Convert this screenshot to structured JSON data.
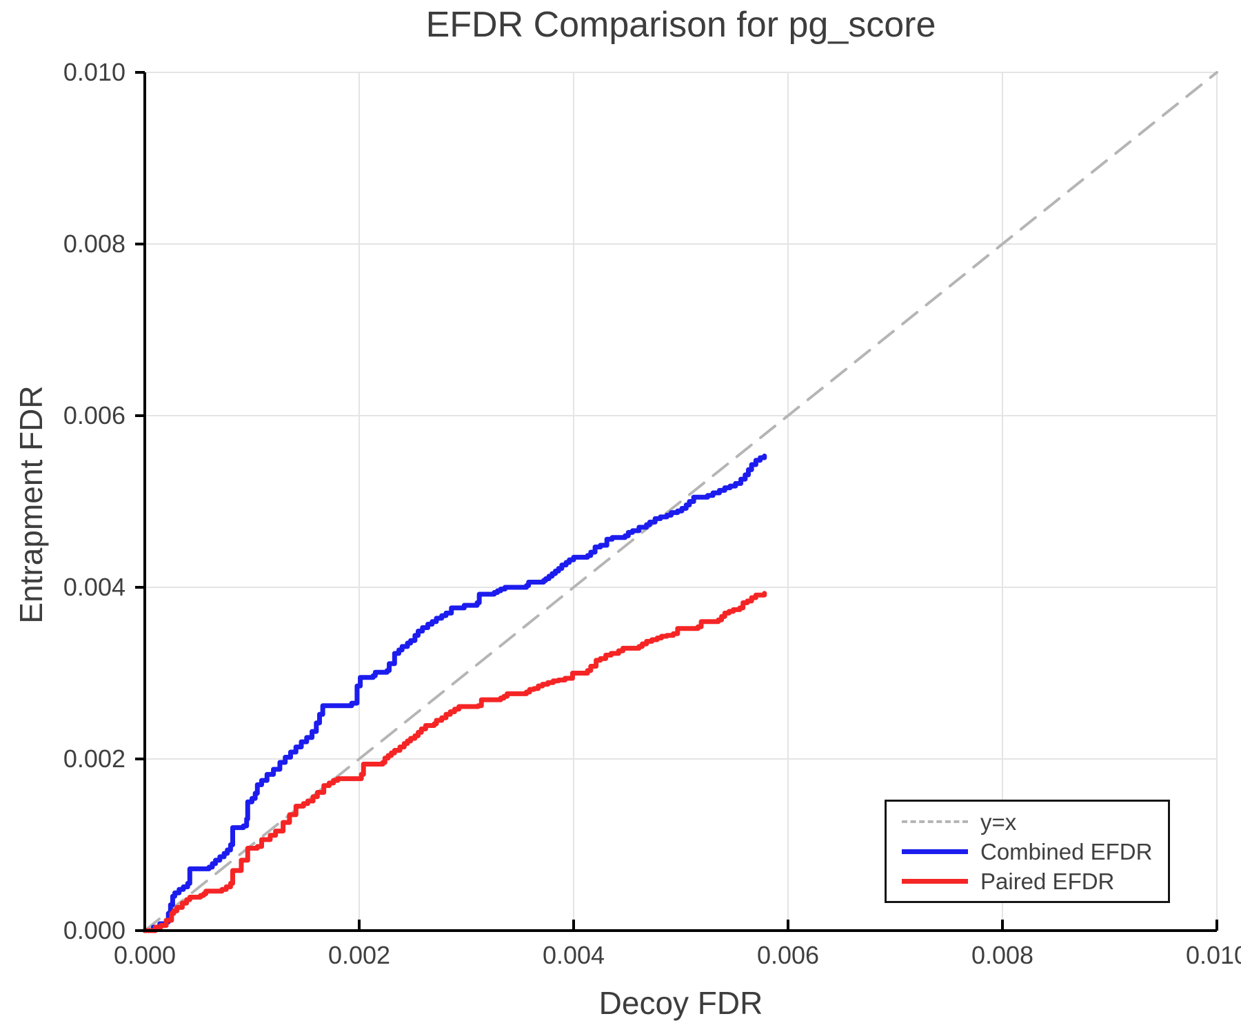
{
  "header": {
    "title": "EFDR Comparison for pg_score"
  },
  "axes": {
    "x_label": "Decoy FDR",
    "y_label": "Entrapment FDR"
  },
  "colors": {
    "combined": "#1c1cee",
    "paired": "#f52525",
    "identity": "#b5b5b5",
    "grid": "#e4e4e4",
    "spine": "#000000",
    "text": "#3f3f3f"
  },
  "chart_data": {
    "type": "line",
    "title": "EFDR Comparison for pg_score",
    "xlabel": "Decoy FDR",
    "ylabel": "Entrapment FDR",
    "xlim": [
      0.0,
      0.01
    ],
    "ylim": [
      0.0,
      0.01
    ],
    "grid": true,
    "x_ticks": {
      "values": [
        0.0,
        0.002,
        0.004,
        0.006,
        0.008,
        0.01
      ],
      "labels": [
        "0.000",
        "0.002",
        "0.004",
        "0.006",
        "0.008",
        "0.010"
      ]
    },
    "y_ticks": {
      "values": [
        0.0,
        0.002,
        0.004,
        0.006,
        0.008,
        0.01
      ],
      "labels": [
        "0.000",
        "0.002",
        "0.004",
        "0.006",
        "0.008",
        "0.010"
      ]
    },
    "legend": {
      "position": "lower right",
      "entries": [
        {
          "label": "y=x",
          "color": "#b5b5b5",
          "dashed": true
        },
        {
          "label": "Combined EFDR",
          "color": "#1c1cee",
          "dashed": false
        },
        {
          "label": "Paired EFDR",
          "color": "#f52525",
          "dashed": false
        }
      ]
    },
    "series": [
      {
        "name": "y=x",
        "color": "#b5b5b5",
        "dashed": true,
        "step": false,
        "width": 4,
        "points": [
          [
            0.0,
            0.0
          ],
          [
            0.01,
            0.01
          ]
        ]
      },
      {
        "name": "Combined EFDR",
        "color": "#1c1cee",
        "dashed": false,
        "step": true,
        "width": 7,
        "points": [
          [
            0.0,
            0.0
          ],
          [
            8e-05,
            4e-05
          ],
          [
            0.00014,
            8e-05
          ],
          [
            0.0002,
            0.0001
          ],
          [
            0.00022,
            0.0002
          ],
          [
            0.00024,
            0.0003
          ],
          [
            0.00026,
            0.0004
          ],
          [
            0.00028,
            0.00044
          ],
          [
            0.00032,
            0.00048
          ],
          [
            0.00036,
            0.00051
          ],
          [
            0.0004,
            0.00055
          ],
          [
            0.00042,
            0.00072
          ],
          [
            0.0006,
            0.00074
          ],
          [
            0.00063,
            0.00078
          ],
          [
            0.00066,
            0.00082
          ],
          [
            0.0007,
            0.00086
          ],
          [
            0.00074,
            0.0009
          ],
          [
            0.00077,
            0.00094
          ],
          [
            0.0008,
            0.001
          ],
          [
            0.00082,
            0.0012
          ],
          [
            0.00092,
            0.00122
          ],
          [
            0.00095,
            0.0013
          ],
          [
            0.00096,
            0.0015
          ],
          [
            0.001,
            0.00154
          ],
          [
            0.00103,
            0.0016
          ],
          [
            0.00105,
            0.0017
          ],
          [
            0.00109,
            0.00175
          ],
          [
            0.00114,
            0.00182
          ],
          [
            0.0012,
            0.00188
          ],
          [
            0.00126,
            0.00196
          ],
          [
            0.00131,
            0.00202
          ],
          [
            0.00136,
            0.00208
          ],
          [
            0.00141,
            0.00214
          ],
          [
            0.00146,
            0.0022
          ],
          [
            0.00151,
            0.00225
          ],
          [
            0.00156,
            0.00232
          ],
          [
            0.0016,
            0.00242
          ],
          [
            0.00163,
            0.00252
          ],
          [
            0.00166,
            0.00262
          ],
          [
            0.00193,
            0.00265
          ],
          [
            0.00198,
            0.00285
          ],
          [
            0.00201,
            0.00295
          ],
          [
            0.00213,
            0.00297
          ],
          [
            0.00215,
            0.00301
          ],
          [
            0.00226,
            0.00303
          ],
          [
            0.00228,
            0.00311
          ],
          [
            0.00233,
            0.00323
          ],
          [
            0.00237,
            0.00327
          ],
          [
            0.0024,
            0.00331
          ],
          [
            0.00245,
            0.00335
          ],
          [
            0.00248,
            0.00338
          ],
          [
            0.00252,
            0.00344
          ],
          [
            0.00255,
            0.00349
          ],
          [
            0.00259,
            0.00353
          ],
          [
            0.00264,
            0.00357
          ],
          [
            0.00268,
            0.0036
          ],
          [
            0.00272,
            0.00364
          ],
          [
            0.00277,
            0.00367
          ],
          [
            0.00281,
            0.0037
          ],
          [
            0.00286,
            0.00376
          ],
          [
            0.00298,
            0.00379
          ],
          [
            0.0031,
            0.00382
          ],
          [
            0.00312,
            0.00392
          ],
          [
            0.00326,
            0.00394
          ],
          [
            0.00329,
            0.00396
          ],
          [
            0.00332,
            0.00398
          ],
          [
            0.00336,
            0.004
          ],
          [
            0.00356,
            0.00402
          ],
          [
            0.00358,
            0.00406
          ],
          [
            0.00372,
            0.00408
          ],
          [
            0.00374,
            0.0041
          ],
          [
            0.00377,
            0.00413
          ],
          [
            0.0038,
            0.00416
          ],
          [
            0.00383,
            0.00419
          ],
          [
            0.00386,
            0.00422
          ],
          [
            0.00389,
            0.00426
          ],
          [
            0.00393,
            0.00429
          ],
          [
            0.00396,
            0.00432
          ],
          [
            0.004,
            0.00435
          ],
          [
            0.00413,
            0.00437
          ],
          [
            0.00416,
            0.00441
          ],
          [
            0.0042,
            0.00447
          ],
          [
            0.00425,
            0.00449
          ],
          [
            0.00431,
            0.00456
          ],
          [
            0.00436,
            0.00458
          ],
          [
            0.00448,
            0.0046
          ],
          [
            0.00451,
            0.00464
          ],
          [
            0.00455,
            0.00466
          ],
          [
            0.00461,
            0.0047
          ],
          [
            0.00468,
            0.00473
          ],
          [
            0.00471,
            0.00476
          ],
          [
            0.00476,
            0.0048
          ],
          [
            0.00481,
            0.00482
          ],
          [
            0.00487,
            0.00484
          ],
          [
            0.00491,
            0.00487
          ],
          [
            0.00497,
            0.00489
          ],
          [
            0.00501,
            0.00492
          ],
          [
            0.00505,
            0.00496
          ],
          [
            0.00508,
            0.005
          ],
          [
            0.00512,
            0.00505
          ],
          [
            0.00525,
            0.00507
          ],
          [
            0.0053,
            0.0051
          ],
          [
            0.00536,
            0.00513
          ],
          [
            0.00541,
            0.00516
          ],
          [
            0.00546,
            0.00518
          ],
          [
            0.00551,
            0.00521
          ],
          [
            0.00556,
            0.00526
          ],
          [
            0.0056,
            0.00531
          ],
          [
            0.00563,
            0.00537
          ],
          [
            0.00566,
            0.00543
          ],
          [
            0.0057,
            0.00548
          ],
          [
            0.00574,
            0.00551
          ],
          [
            0.00578,
            0.00553
          ]
        ]
      },
      {
        "name": "Paired EFDR",
        "color": "#f52525",
        "dashed": false,
        "step": true,
        "width": 7,
        "points": [
          [
            0.0,
            0.0
          ],
          [
            0.0001,
            4e-05
          ],
          [
            0.00015,
            6e-05
          ],
          [
            0.0002,
            0.00012
          ],
          [
            0.00025,
            0.0002
          ],
          [
            0.00027,
            0.00023
          ],
          [
            0.0003,
            0.00027
          ],
          [
            0.00035,
            0.00032
          ],
          [
            0.00039,
            0.00036
          ],
          [
            0.00042,
            0.00039
          ],
          [
            0.00052,
            0.00041
          ],
          [
            0.00055,
            0.00043
          ],
          [
            0.00057,
            0.00046
          ],
          [
            0.00072,
            0.00048
          ],
          [
            0.00076,
            0.00051
          ],
          [
            0.0008,
            0.00055
          ],
          [
            0.00082,
            0.0007
          ],
          [
            0.0009,
            0.00082
          ],
          [
            0.00096,
            0.00096
          ],
          [
            0.00105,
            0.00098
          ],
          [
            0.00109,
            0.00106
          ],
          [
            0.00117,
            0.00111
          ],
          [
            0.00122,
            0.00116
          ],
          [
            0.00129,
            0.00126
          ],
          [
            0.00135,
            0.00135
          ],
          [
            0.00141,
            0.00145
          ],
          [
            0.00148,
            0.00148
          ],
          [
            0.00152,
            0.00151
          ],
          [
            0.00157,
            0.00156
          ],
          [
            0.00161,
            0.00161
          ],
          [
            0.00167,
            0.00169
          ],
          [
            0.00172,
            0.00172
          ],
          [
            0.00176,
            0.00175
          ],
          [
            0.0018,
            0.00177
          ],
          [
            0.00202,
            0.00182
          ],
          [
            0.00204,
            0.00194
          ],
          [
            0.00222,
            0.00196
          ],
          [
            0.00224,
            0.00201
          ],
          [
            0.00227,
            0.00204
          ],
          [
            0.0023,
            0.00207
          ],
          [
            0.00233,
            0.0021
          ],
          [
            0.00238,
            0.00214
          ],
          [
            0.00242,
            0.00218
          ],
          [
            0.00245,
            0.00221
          ],
          [
            0.00248,
            0.00224
          ],
          [
            0.00252,
            0.00227
          ],
          [
            0.00255,
            0.00231
          ],
          [
            0.00258,
            0.00235
          ],
          [
            0.00262,
            0.00239
          ],
          [
            0.0027,
            0.00241
          ],
          [
            0.00272,
            0.00245
          ],
          [
            0.00277,
            0.00248
          ],
          [
            0.00281,
            0.00252
          ],
          [
            0.00285,
            0.00255
          ],
          [
            0.00289,
            0.00258
          ],
          [
            0.00293,
            0.00261
          ],
          [
            0.00311,
            0.00262
          ],
          [
            0.00314,
            0.00269
          ],
          [
            0.00332,
            0.00271
          ],
          [
            0.00335,
            0.00273
          ],
          [
            0.00338,
            0.00276
          ],
          [
            0.00356,
            0.00278
          ],
          [
            0.00359,
            0.00281
          ],
          [
            0.00363,
            0.00282
          ],
          [
            0.00367,
            0.00285
          ],
          [
            0.00371,
            0.00287
          ],
          [
            0.00376,
            0.00289
          ],
          [
            0.00381,
            0.00291
          ],
          [
            0.00386,
            0.00292
          ],
          [
            0.00392,
            0.00294
          ],
          [
            0.00399,
            0.003
          ],
          [
            0.00413,
            0.00303
          ],
          [
            0.00416,
            0.00308
          ],
          [
            0.00421,
            0.00315
          ],
          [
            0.00425,
            0.00317
          ],
          [
            0.0043,
            0.00321
          ],
          [
            0.00435,
            0.00323
          ],
          [
            0.00442,
            0.00326
          ],
          [
            0.00446,
            0.00329
          ],
          [
            0.00461,
            0.00331
          ],
          [
            0.00464,
            0.00334
          ],
          [
            0.00468,
            0.00337
          ],
          [
            0.00473,
            0.00339
          ],
          [
            0.00478,
            0.00341
          ],
          [
            0.00482,
            0.00343
          ],
          [
            0.00487,
            0.00344
          ],
          [
            0.00493,
            0.00346
          ],
          [
            0.00497,
            0.00352
          ],
          [
            0.00516,
            0.00354
          ],
          [
            0.00519,
            0.0036
          ],
          [
            0.00535,
            0.00362
          ],
          [
            0.00538,
            0.00366
          ],
          [
            0.00541,
            0.0037
          ],
          [
            0.00545,
            0.00372
          ],
          [
            0.00549,
            0.00374
          ],
          [
            0.00555,
            0.00376
          ],
          [
            0.00558,
            0.00382
          ],
          [
            0.00562,
            0.00384
          ],
          [
            0.00566,
            0.00388
          ],
          [
            0.0057,
            0.00391
          ],
          [
            0.00578,
            0.00393
          ]
        ]
      }
    ]
  }
}
